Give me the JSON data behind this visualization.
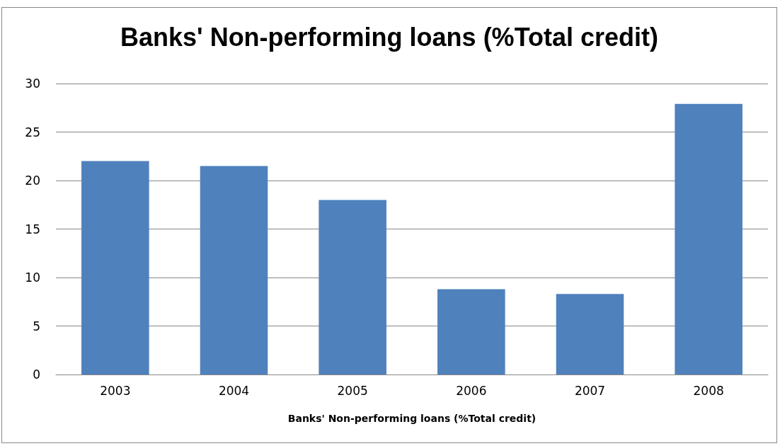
{
  "chart_data": {
    "type": "bar",
    "title": "Banks' Non-performing loans (%Total credit)",
    "xlabel": "Banks' Non-performing loans (%Total credit)",
    "categories": [
      "2003",
      "2004",
      "2005",
      "2006",
      "2007",
      "2008"
    ],
    "values": [
      22.0,
      21.5,
      18.0,
      8.8,
      8.3,
      27.9
    ],
    "color": "#4f81bd",
    "ylim": [
      0,
      30
    ],
    "yticks": [
      0,
      5,
      10,
      15,
      20,
      25,
      30
    ],
    "grid": "y"
  }
}
